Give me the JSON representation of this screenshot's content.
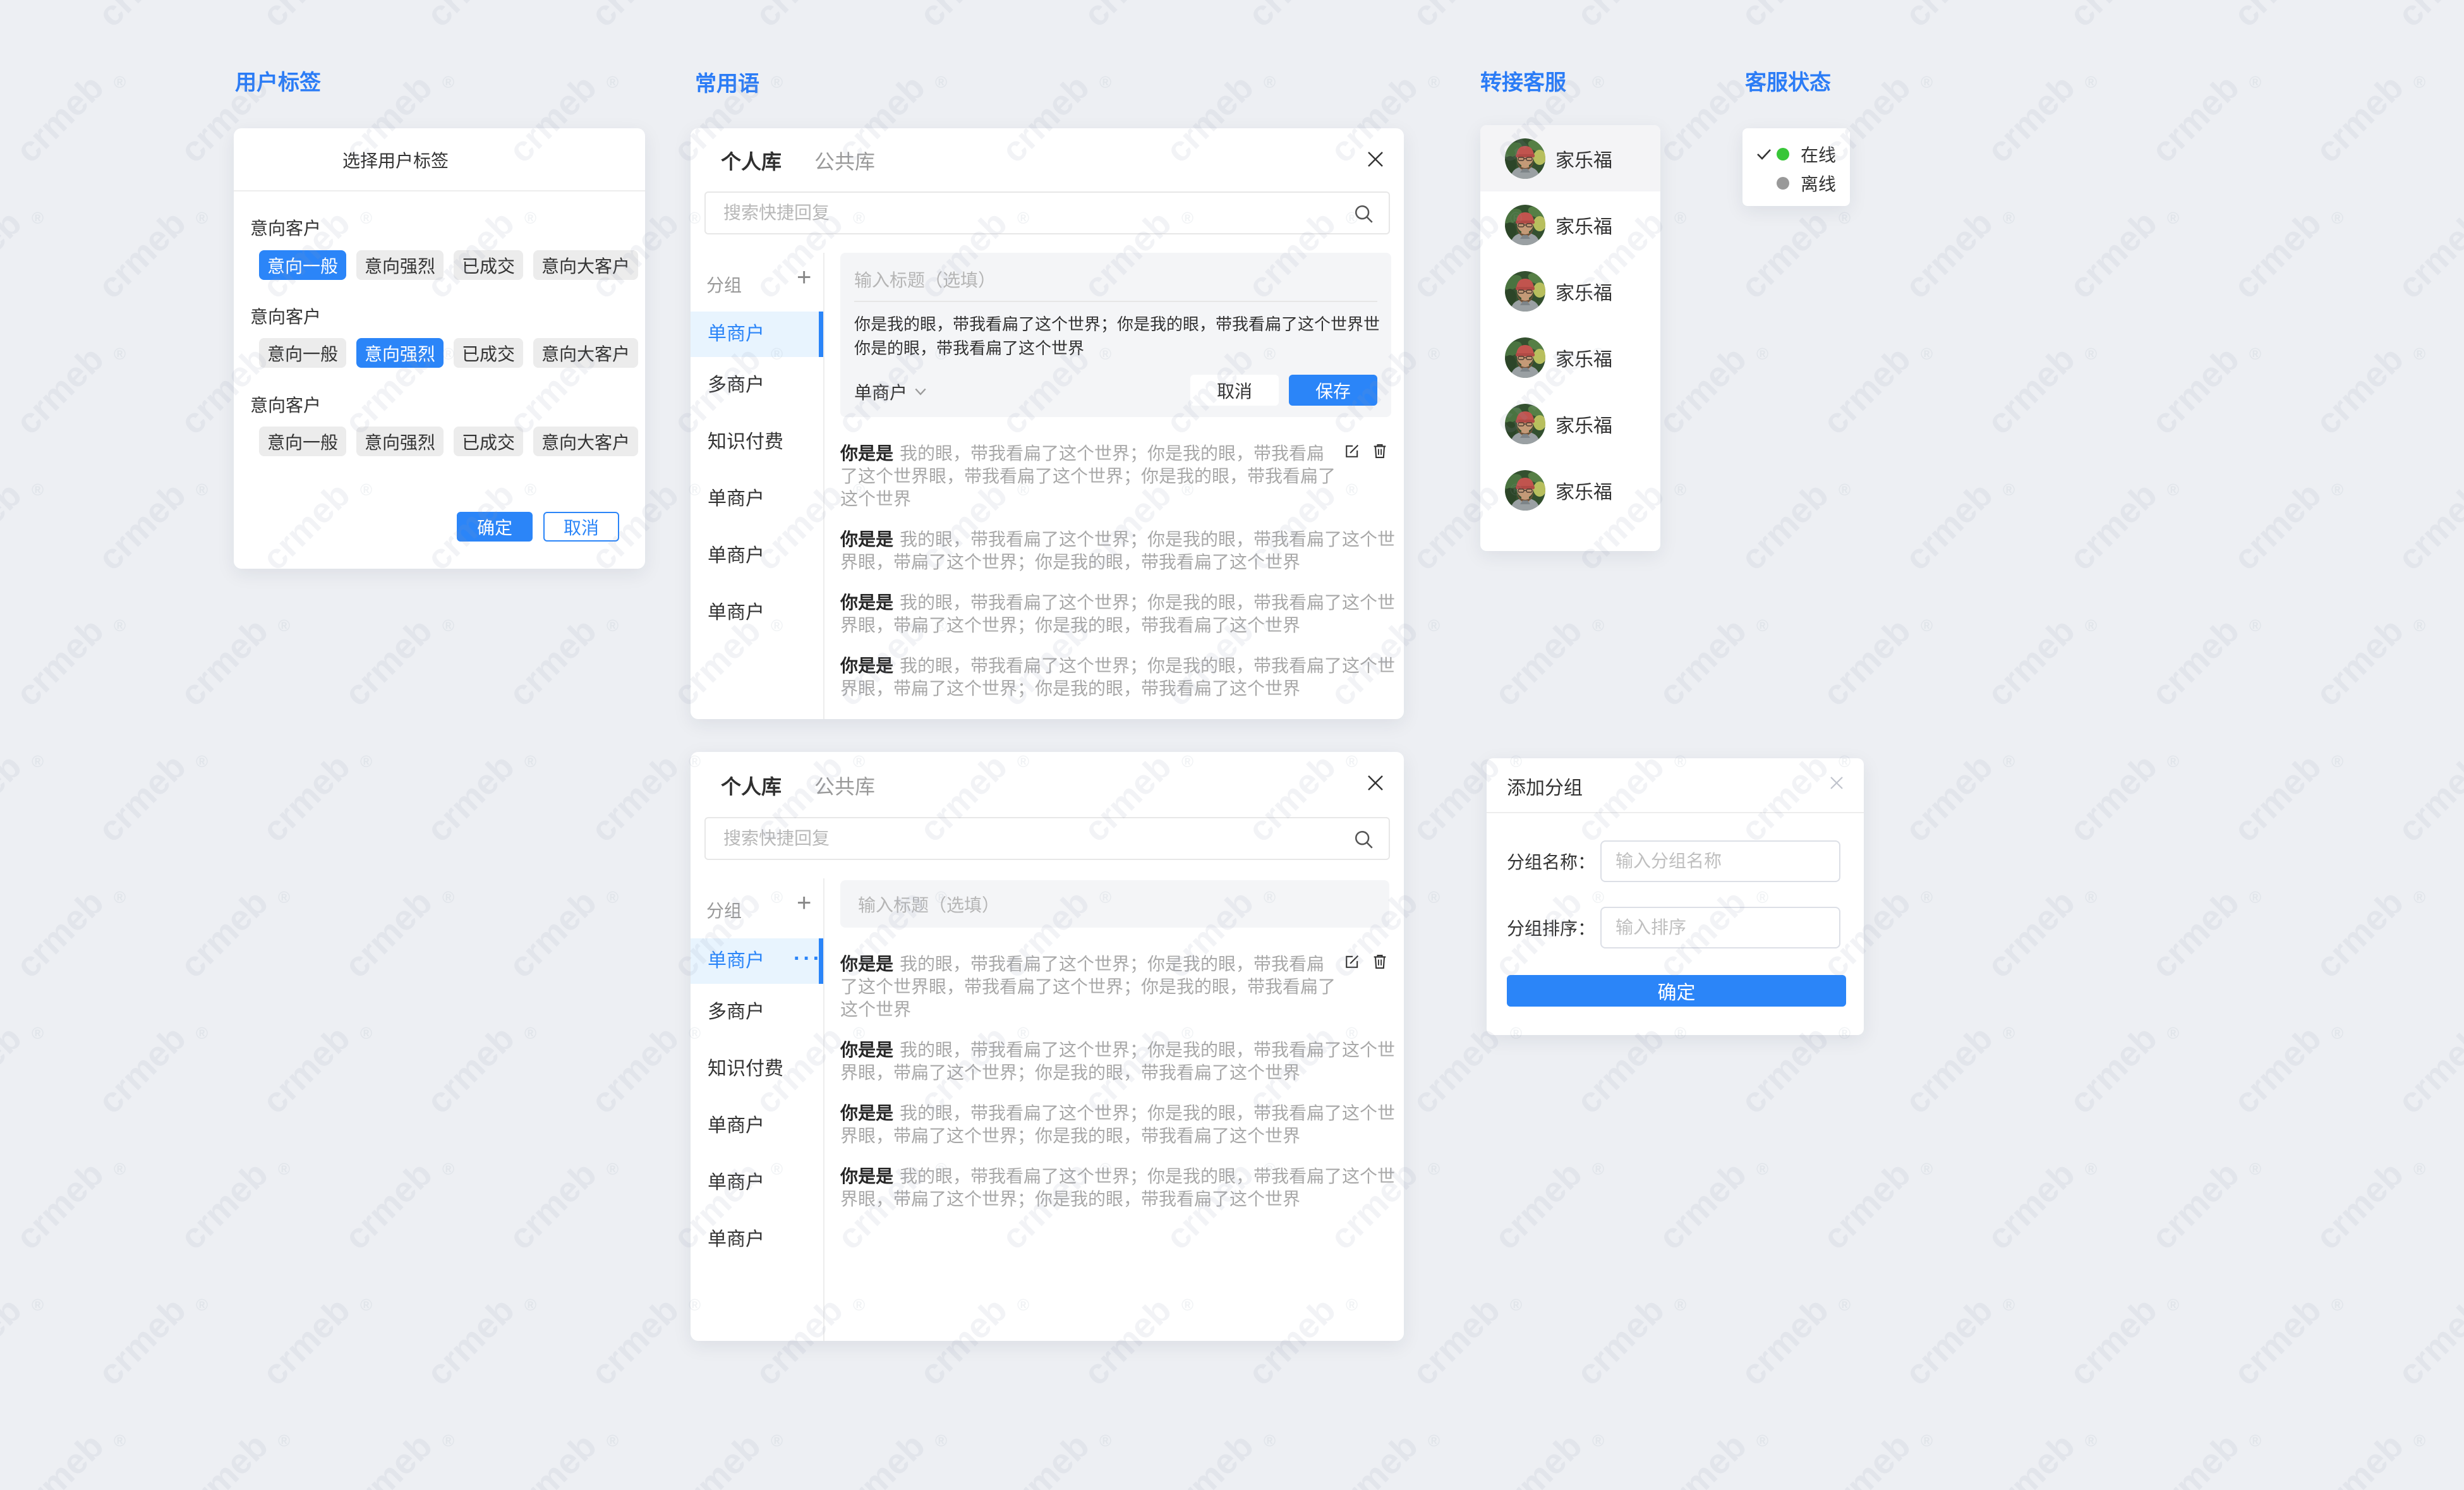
{
  "watermark": {
    "text": "crmeb",
    "reg": "®"
  },
  "colors": {
    "accent": "#2b85f8",
    "online": "#38c638",
    "offline": "#999999"
  },
  "sections": {
    "user_tags_label": "用户标签",
    "phrases_label": "常用语",
    "transfer_label": "转接客服",
    "status_label": "客服状态"
  },
  "tag_dialog": {
    "title": "选择用户标签",
    "confirm_label": "确定",
    "cancel_label": "取消",
    "groups": [
      {
        "name": "意向客户",
        "selected_index": 0,
        "tags": [
          "意向一般",
          "意向强烈",
          "已成交",
          "意向大客户"
        ]
      },
      {
        "name": "意向客户",
        "selected_index": 1,
        "tags": [
          "意向一般",
          "意向强烈",
          "已成交",
          "意向大客户"
        ]
      },
      {
        "name": "意向客户",
        "selected_index": -1,
        "tags": [
          "意向一般",
          "意向强烈",
          "已成交",
          "意向大客户"
        ]
      }
    ]
  },
  "phrase_top": {
    "tabs": [
      {
        "label": "个人库",
        "active": true
      },
      {
        "label": "公共库",
        "active": false
      }
    ],
    "search_placeholder": "搜索快捷回复",
    "group_header": "分组",
    "add_icon_label": "+",
    "sidebar": [
      {
        "label": "单商户",
        "active": true
      },
      {
        "label": "多商户"
      },
      {
        "label": "知识付费"
      },
      {
        "label": "单商户"
      },
      {
        "label": "单商户"
      },
      {
        "label": "单商户"
      }
    ],
    "editor": {
      "title_placeholder": "输入标题（选填）",
      "content": "你是我的眼，带我看扁了这个世界；你是我的眼，带我看扁了这个世界世你是的眼，带我看扁了这个世界",
      "group_select": "单商户",
      "cancel_label": "取消",
      "save_label": "保存"
    },
    "items": [
      {
        "prefix": "你是是",
        "body": "我的眼，带我看扁了这个世界；你是我的眼，带我看扁了这个世界眼，带我看扁了这个世界；你是我的眼，带我看扁了这个世界",
        "has_actions": true
      },
      {
        "prefix": "你是是",
        "body": "我的眼，带我看扁了这个世界；你是我的眼，带我看扁了这个世界眼，带扁了这个世界；你是我的眼，带我看扁了这个世界"
      },
      {
        "prefix": "你是是",
        "body": "我的眼，带我看扁了这个世界；你是我的眼，带我看扁了这个世界眼，带扁了这个世界；你是我的眼，带我看扁了这个世界"
      },
      {
        "prefix": "你是是",
        "body": "我的眼，带我看扁了这个世界；你是我的眼，带我看扁了这个世界眼，带扁了这个世界；你是我的眼，带我看扁了这个世界"
      }
    ]
  },
  "phrase_bottom": {
    "tabs": [
      {
        "label": "个人库",
        "active": true
      },
      {
        "label": "公共库",
        "active": false
      }
    ],
    "search_placeholder": "搜索快捷回复",
    "group_header": "分组",
    "add_icon_label": "+",
    "title_placeholder": "输入标题（选填）",
    "menu_dots": "···",
    "sidebar": [
      {
        "label": "单商户",
        "active": true,
        "has_menu": true
      },
      {
        "label": "多商户"
      },
      {
        "label": "知识付费"
      },
      {
        "label": "单商户"
      },
      {
        "label": "单商户"
      },
      {
        "label": "单商户"
      }
    ],
    "items": [
      {
        "prefix": "你是是",
        "body": "我的眼，带我看扁了这个世界；你是我的眼，带我看扁了这个世界眼，带我看扁了这个世界；你是我的眼，带我看扁了这个世界",
        "has_actions": true
      },
      {
        "prefix": "你是是",
        "body": "我的眼，带我看扁了这个世界；你是我的眼，带我看扁了这个世界眼，带扁了这个世界；你是我的眼，带我看扁了这个世界"
      },
      {
        "prefix": "你是是",
        "body": "我的眼，带我看扁了这个世界；你是我的眼，带我看扁了这个世界眼，带扁了这个世界；你是我的眼，带我看扁了这个世界"
      },
      {
        "prefix": "你是是",
        "body": "我的眼，带我看扁了这个世界；你是我的眼，带我看扁了这个世界眼，带扁了这个世界；你是我的眼，带我看扁了这个世界"
      }
    ]
  },
  "transfer_panel": {
    "agents": [
      {
        "name": "家乐福"
      },
      {
        "name": "家乐福"
      },
      {
        "name": "家乐福"
      },
      {
        "name": "家乐福"
      },
      {
        "name": "家乐福"
      },
      {
        "name": "家乐福"
      }
    ]
  },
  "status_panel": {
    "options": [
      {
        "label": "在线",
        "checked": true,
        "dot_color": "#38c638"
      },
      {
        "label": "离线",
        "checked": false,
        "dot_color": "#999999"
      }
    ]
  },
  "add_group_dialog": {
    "title": "添加分组",
    "confirm_label": "确定",
    "fields": [
      {
        "label": "分组名称：",
        "placeholder": "输入分组名称"
      },
      {
        "label": "分组排序：",
        "placeholder": "输入排序"
      }
    ]
  }
}
